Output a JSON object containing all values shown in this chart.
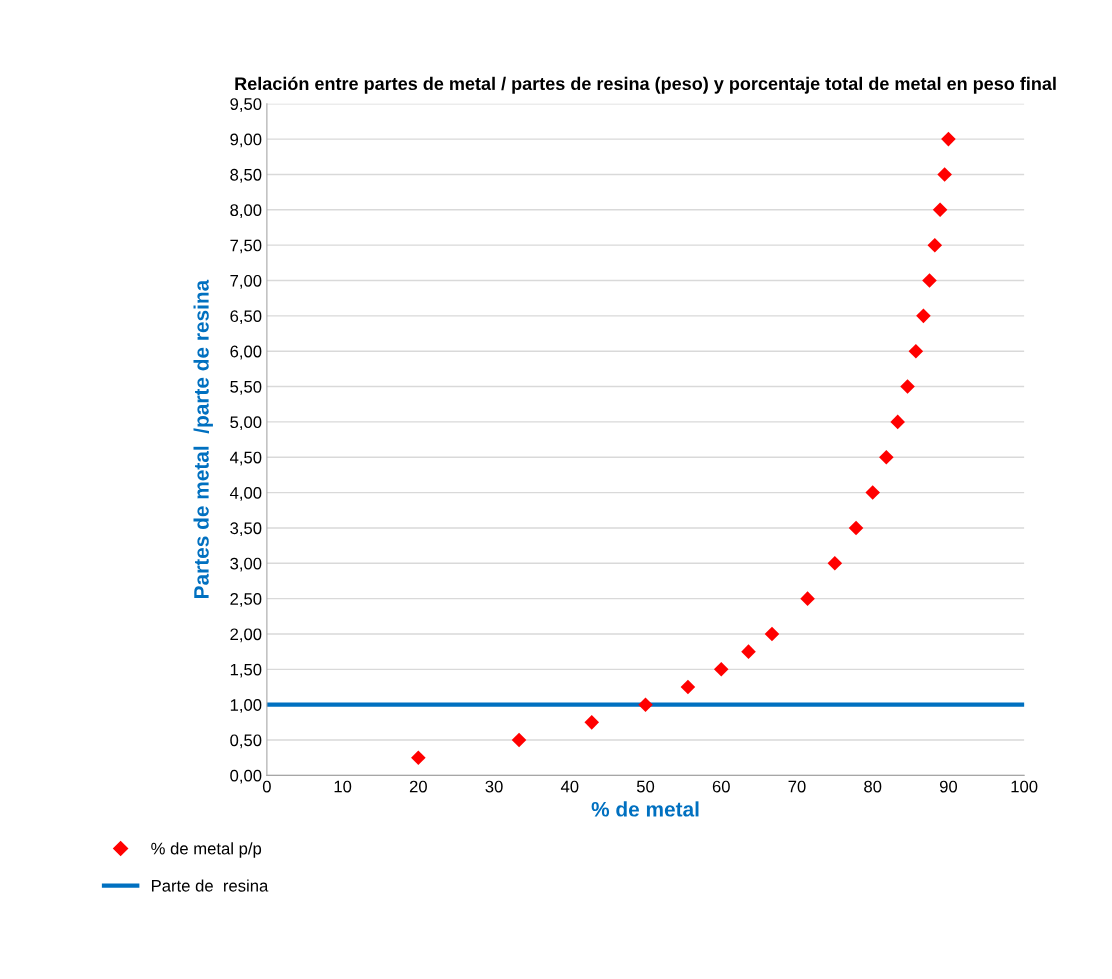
{
  "chart_data": {
    "type": "scatter",
    "title": "Relación entre partes de metal / partes de resina (peso) y porcentaje total de metal en peso final",
    "xlabel": "% de metal",
    "ylabel": "Partes de metal  /parte de resina",
    "series": [
      {
        "name": "% de metal p/p",
        "color": "#ff0000",
        "marker": "diamond",
        "x": [
          20,
          33.3,
          42.9,
          50,
          55.6,
          60,
          63.6,
          66.7,
          71.4,
          75,
          77.8,
          80,
          81.8,
          83.3,
          84.6,
          85.7,
          86.7,
          87.5,
          88.2,
          88.9,
          89.5,
          90
        ],
        "values": [
          0.25,
          0.5,
          0.75,
          1,
          1.25,
          1.5,
          1.75,
          2,
          2.5,
          3,
          3.5,
          4,
          4.5,
          5,
          5.5,
          6,
          6.5,
          7,
          7.5,
          8,
          8.5,
          9
        ]
      }
    ],
    "ref_lines": [
      {
        "axis": "y",
        "value": 1,
        "label": "Parte de  resina",
        "color": "#0070c0",
        "line_style": "solid"
      }
    ],
    "xlim": [
      0,
      100
    ],
    "xticks": [
      0,
      10,
      20,
      30,
      40,
      50,
      60,
      70,
      80,
      90,
      100
    ],
    "ylim": [
      0,
      9.5
    ],
    "yticks": [
      {
        "value": 0,
        "label": "0,00"
      },
      {
        "value": 0.5,
        "label": "0,50"
      },
      {
        "value": 1,
        "label": "1,00"
      },
      {
        "value": 1.5,
        "label": "1,50"
      },
      {
        "value": 2,
        "label": "2,00"
      },
      {
        "value": 2.5,
        "label": "2,50"
      },
      {
        "value": 3,
        "label": "3,00"
      },
      {
        "value": 3.5,
        "label": "3,50"
      },
      {
        "value": 4,
        "label": "4,00"
      },
      {
        "value": 4.5,
        "label": "4,50"
      },
      {
        "value": 5,
        "label": "5,00"
      },
      {
        "value": 5.5,
        "label": "5,50"
      },
      {
        "value": 6,
        "label": "6,00"
      },
      {
        "value": 6.5,
        "label": "6,50"
      },
      {
        "value": 7,
        "label": "7,00"
      },
      {
        "value": 7.5,
        "label": "7,50"
      },
      {
        "value": 8,
        "label": "8,00"
      },
      {
        "value": 8.5,
        "label": "8,50"
      },
      {
        "value": 9,
        "label": "9,00"
      },
      {
        "value": 9.5,
        "label": "9,50"
      }
    ],
    "grid": "y",
    "legend": "bottom left"
  }
}
